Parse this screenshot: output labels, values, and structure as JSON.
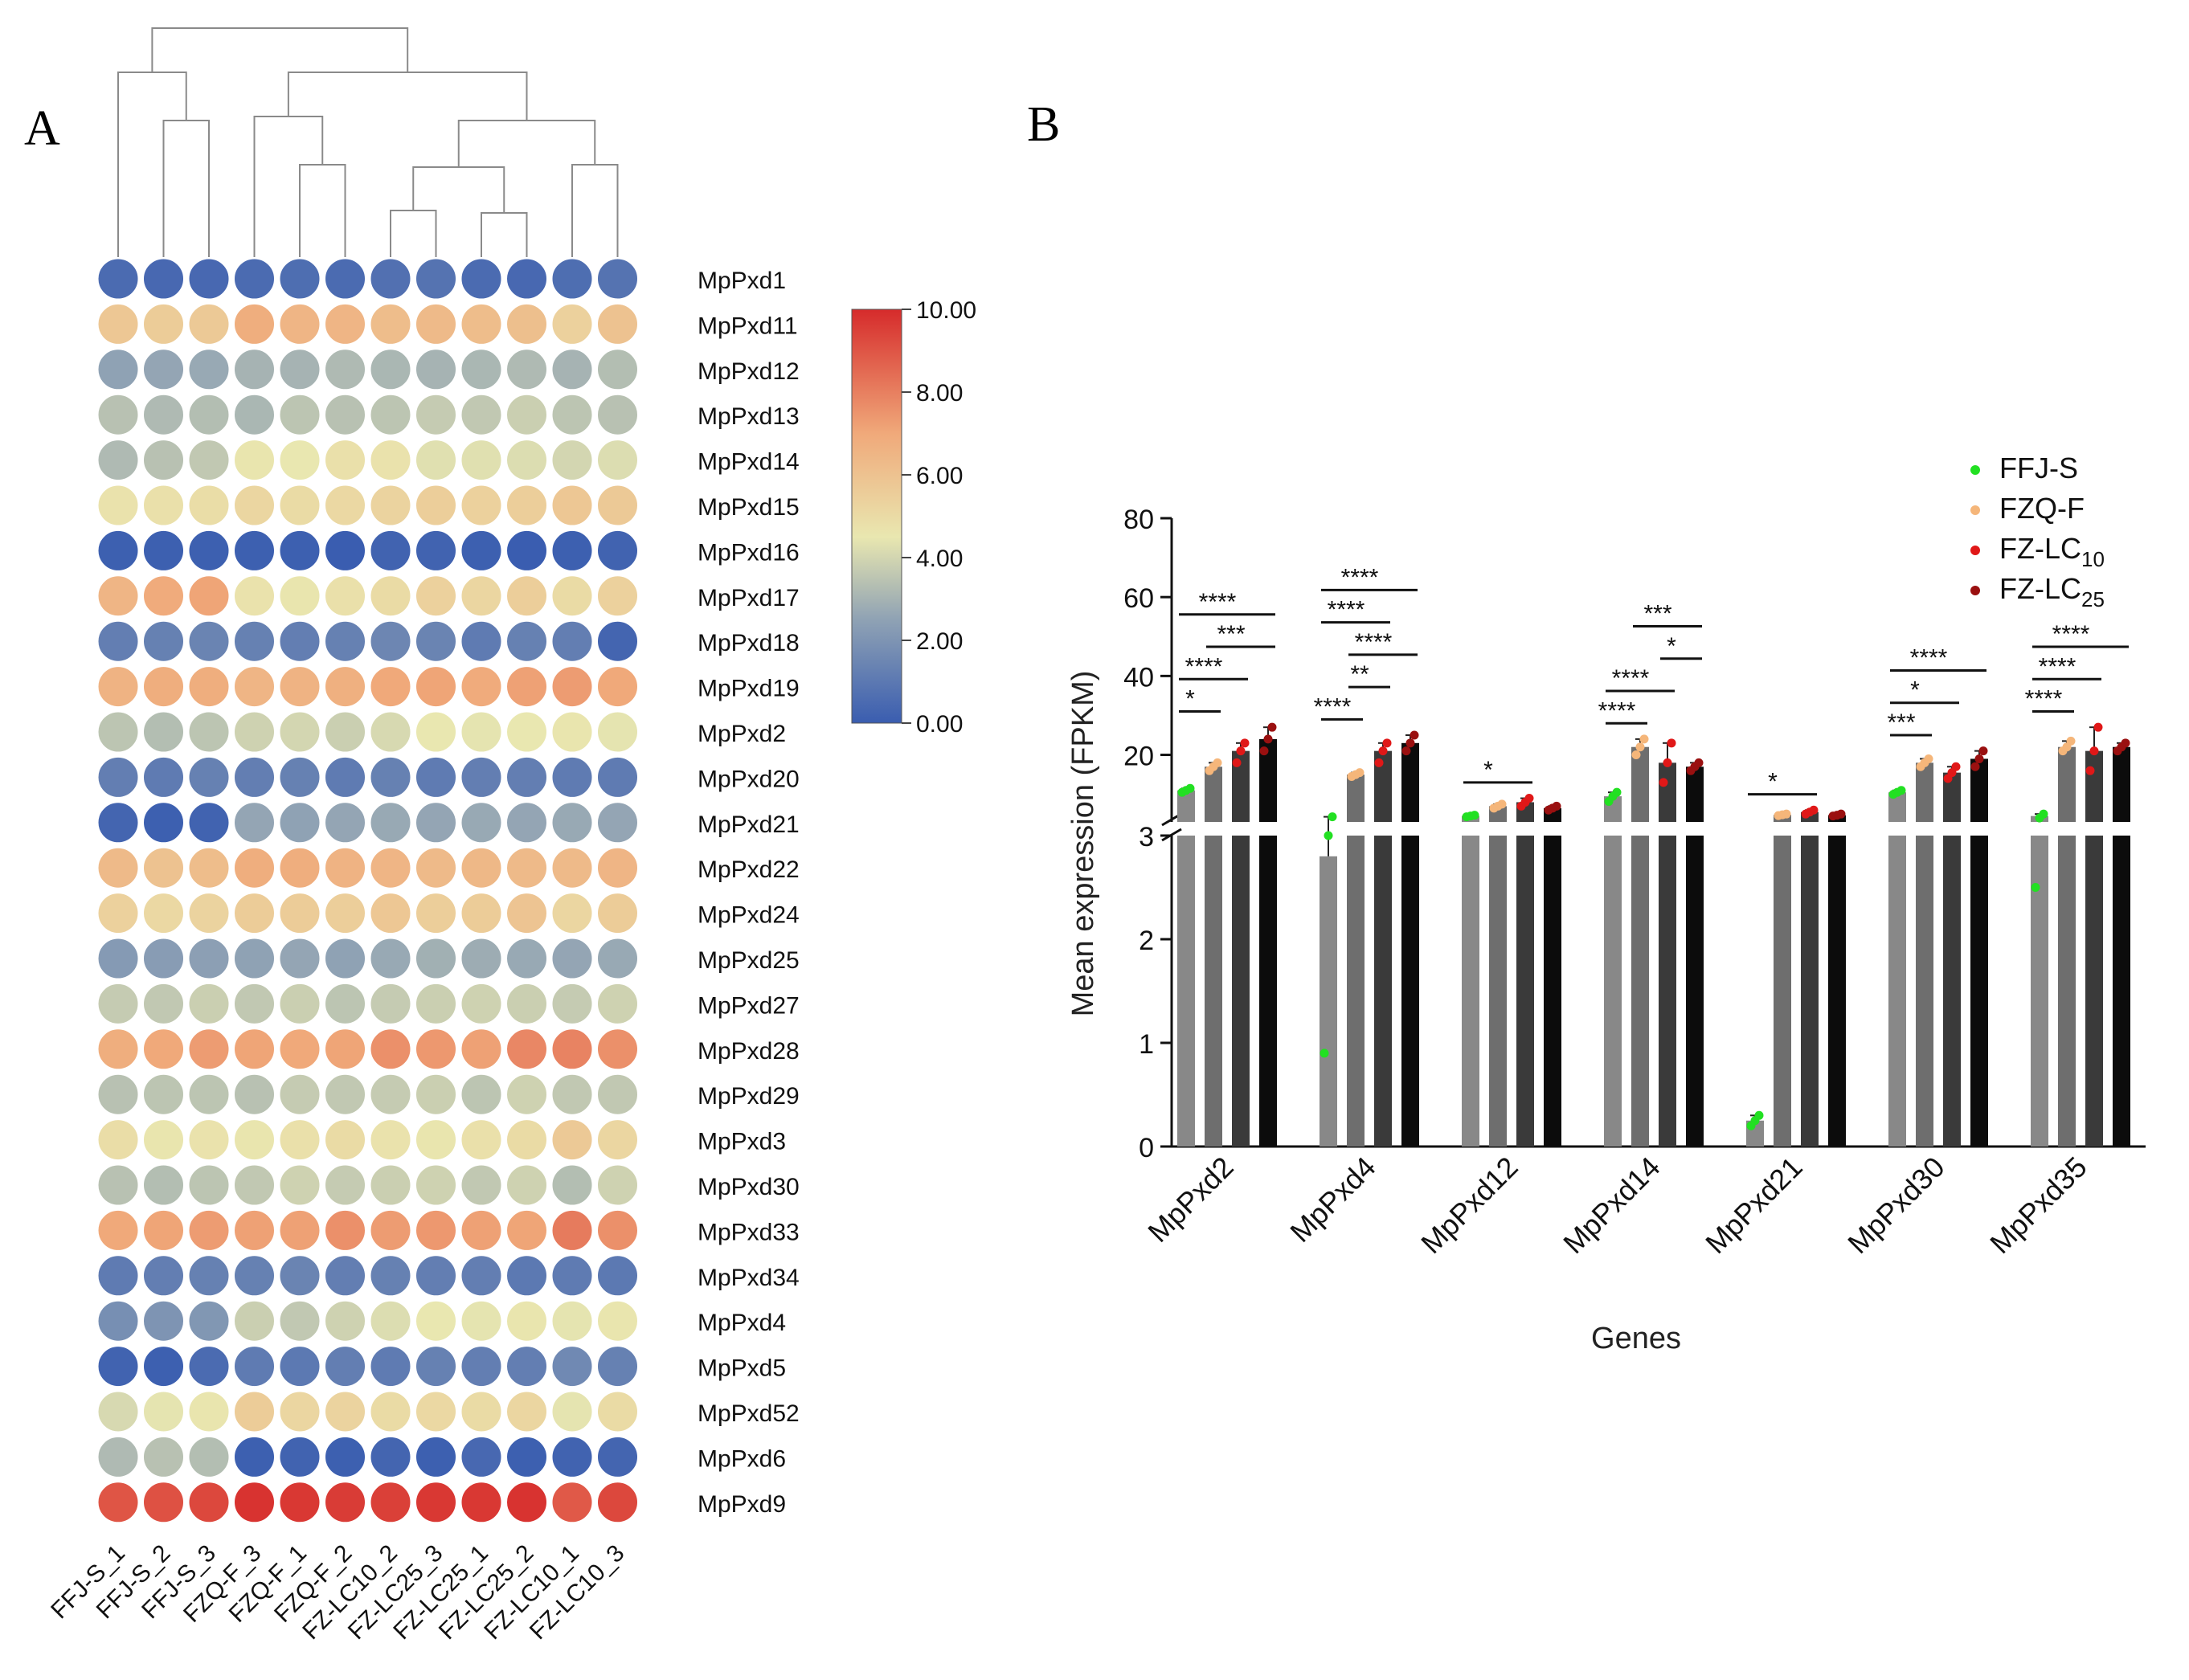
{
  "panels": {
    "a_label": "A",
    "b_label": "B"
  },
  "colors": {
    "ffj": "#22e022",
    "fzq": "#f5b67a",
    "lc10": "#e01818",
    "lc25": "#9a1010",
    "bar_ffj": "#888888",
    "bar_fzq": "#6e6e6e",
    "bar_lc10": "#3a3a3a",
    "bar_lc25": "#0c0c0c"
  },
  "chart_data": [
    {
      "type": "heatmap",
      "title": "",
      "columns": [
        "FFJ-S_1",
        "FFJ-S_2",
        "FFJ-S_3",
        "FZQ-F_3",
        "FZQ-F_1",
        "FZQ-F_2",
        "FZ-LC10_2",
        "FZ-LC25_3",
        "FZ-LC25_1",
        "FZ-LC25_2",
        "FZ-LC10_1",
        "FZ-LC10_3"
      ],
      "rows": [
        "MpPxd1",
        "MpPxd11",
        "MpPxd12",
        "MpPxd13",
        "MpPxd14",
        "MpPxd15",
        "MpPxd16",
        "MpPxd17",
        "MpPxd18",
        "MpPxd19",
        "MpPxd2",
        "MpPxd20",
        "MpPxd21",
        "MpPxd22",
        "MpPxd24",
        "MpPxd25",
        "MpPxd27",
        "MpPxd28",
        "MpPxd29",
        "MpPxd3",
        "MpPxd30",
        "MpPxd33",
        "MpPxd34",
        "MpPxd4",
        "MpPxd5",
        "MpPxd52",
        "MpPxd6",
        "MpPxd9"
      ],
      "values": [
        [
          0.5,
          0.4,
          0.4,
          0.5,
          0.6,
          0.5,
          0.7,
          0.8,
          0.5,
          0.4,
          0.6,
          0.8
        ],
        [
          5.8,
          5.6,
          5.7,
          6.8,
          6.5,
          6.5,
          6.2,
          6.3,
          6.2,
          6.1,
          5.4,
          6.0
        ],
        [
          2.5,
          2.6,
          2.7,
          3.0,
          3.0,
          3.2,
          3.1,
          3.0,
          3.1,
          3.2,
          3.0,
          3.3
        ],
        [
          3.4,
          3.2,
          3.3,
          3.1,
          3.5,
          3.4,
          3.5,
          3.7,
          3.6,
          3.8,
          3.5,
          3.4
        ],
        [
          3.2,
          3.4,
          3.6,
          4.6,
          4.5,
          4.8,
          4.7,
          4.3,
          4.3,
          4.2,
          4.0,
          4.2
        ],
        [
          4.7,
          4.8,
          4.9,
          5.2,
          5.0,
          5.1,
          5.3,
          5.5,
          5.4,
          5.5,
          5.8,
          5.7
        ],
        [
          0.1,
          0.1,
          0.1,
          0.1,
          0.1,
          0.0,
          0.2,
          0.2,
          0.1,
          0.0,
          0.1,
          0.2
        ],
        [
          6.5,
          6.9,
          7.1,
          4.7,
          4.6,
          4.8,
          5.0,
          5.4,
          5.2,
          5.5,
          5.0,
          5.4
        ],
        [
          1.2,
          1.3,
          1.4,
          1.3,
          1.2,
          1.3,
          1.5,
          1.4,
          1.1,
          1.3,
          1.2,
          0.3
        ],
        [
          6.6,
          6.8,
          6.8,
          6.5,
          6.6,
          6.7,
          7.0,
          7.1,
          6.9,
          7.2,
          7.3,
          7.0
        ],
        [
          3.5,
          3.3,
          3.5,
          3.9,
          4.0,
          3.8,
          4.1,
          4.5,
          4.4,
          4.5,
          4.6,
          4.4
        ],
        [
          1.2,
          1.1,
          1.3,
          1.2,
          1.3,
          1.1,
          1.3,
          1.1,
          1.2,
          1.2,
          1.1,
          1.1
        ],
        [
          0.3,
          0.1,
          0.2,
          2.6,
          2.5,
          2.6,
          2.7,
          2.6,
          2.7,
          2.6,
          2.7,
          2.6
        ],
        [
          6.3,
          6.0,
          6.2,
          6.8,
          6.8,
          6.6,
          6.5,
          6.3,
          6.4,
          6.3,
          6.3,
          6.5
        ],
        [
          5.4,
          5.1,
          5.3,
          5.6,
          5.6,
          5.5,
          5.8,
          5.5,
          5.6,
          5.9,
          5.2,
          5.6
        ],
        [
          2.2,
          2.3,
          2.4,
          2.5,
          2.6,
          2.5,
          2.7,
          2.9,
          2.8,
          2.7,
          2.6,
          2.7
        ],
        [
          3.7,
          3.6,
          3.8,
          3.6,
          3.8,
          3.5,
          3.7,
          3.8,
          3.9,
          3.8,
          3.7,
          3.9
        ],
        [
          6.8,
          7.0,
          7.3,
          7.1,
          7.0,
          7.1,
          7.6,
          7.4,
          7.2,
          7.8,
          7.9,
          7.6
        ],
        [
          3.4,
          3.5,
          3.5,
          3.4,
          3.7,
          3.6,
          3.7,
          3.8,
          3.5,
          3.9,
          3.6,
          3.6
        ],
        [
          4.9,
          4.6,
          4.7,
          4.6,
          4.8,
          5.0,
          4.7,
          4.6,
          4.8,
          5.0,
          5.7,
          5.2
        ],
        [
          3.4,
          3.3,
          3.5,
          3.6,
          3.9,
          3.7,
          3.8,
          3.9,
          3.6,
          3.9,
          3.3,
          3.9
        ],
        [
          7.0,
          7.1,
          7.3,
          7.2,
          7.2,
          7.6,
          7.3,
          7.4,
          7.2,
          7.1,
          8.1,
          7.6
        ],
        [
          1.1,
          1.2,
          1.3,
          1.3,
          1.4,
          1.2,
          1.3,
          1.2,
          1.2,
          1.0,
          1.1,
          1.0
        ],
        [
          1.8,
          2.0,
          2.1,
          3.8,
          3.6,
          3.9,
          4.2,
          4.5,
          4.4,
          4.6,
          4.4,
          4.6
        ],
        [
          0.2,
          0.1,
          0.5,
          1.1,
          1.0,
          1.2,
          1.1,
          1.3,
          1.2,
          1.2,
          1.6,
          1.3
        ],
        [
          4.1,
          4.4,
          4.6,
          5.6,
          5.2,
          5.3,
          5.0,
          5.1,
          5.0,
          5.2,
          4.4,
          5.0
        ],
        [
          3.2,
          3.4,
          3.3,
          0.1,
          0.2,
          0.1,
          0.3,
          0.1,
          0.4,
          0.1,
          0.2,
          0.3
        ],
        [
          9.0,
          9.1,
          9.3,
          9.8,
          9.7,
          9.6,
          9.5,
          9.7,
          9.7,
          9.8,
          8.9,
          9.3
        ]
      ],
      "colorbar": {
        "range": [
          0,
          10
        ],
        "ticks": [
          "10.00",
          "8.00",
          "6.00",
          "4.00",
          "2.00",
          "0.00"
        ],
        "stops": [
          "#3a5db0",
          "#e9e7b0",
          "#d62b2b"
        ]
      },
      "dendrogram": "hierarchical clustering of columns"
    },
    {
      "type": "bar",
      "title": "",
      "xlabel": "Genes",
      "ylabel": "Mean expression (FPKM)",
      "categories": [
        "MpPxd2",
        "MpPxd4",
        "MpPxd12",
        "MpPxd14",
        "MpPxd21",
        "MpPxd30",
        "MpPxd35"
      ],
      "ylim_lower": [
        0,
        3
      ],
      "ylim_upper": [
        3,
        80
      ],
      "yticks_lower": [
        "0",
        "1",
        "2",
        "3"
      ],
      "yticks_upper": [
        "20",
        "40",
        "60",
        "80"
      ],
      "series": [
        {
          "name": "FFJ-S",
          "legend_main": "FFJ-S",
          "legend_sub": "",
          "values": [
            11,
            2.8,
            4.5,
            9.5,
            0.25,
            10.5,
            4.5
          ],
          "points": [
            [
              10.5,
              11.0,
              11.5
            ],
            [
              0.9,
              3.0,
              4.3
            ],
            [
              4.3,
              4.5,
              4.7
            ],
            [
              8.2,
              9.5,
              10.5
            ],
            [
              0.2,
              0.25,
              0.3
            ],
            [
              10.0,
              10.5,
              11.0
            ],
            [
              2.5,
              4.0,
              5.0
            ]
          ]
        },
        {
          "name": "FZQ-F",
          "legend_main": "FZQ-F",
          "legend_sub": "",
          "values": [
            17,
            15,
            7,
            22,
            4.8,
            18,
            22
          ],
          "points": [
            [
              16.0,
              17.0,
              18.0
            ],
            [
              14.5,
              15.0,
              15.5
            ],
            [
              6.5,
              7.0,
              7.5
            ],
            [
              20.0,
              22.0,
              24.0
            ],
            [
              4.6,
              4.8,
              5.0
            ],
            [
              17.0,
              18.0,
              19.0
            ],
            [
              21.0,
              22.0,
              23.5
            ]
          ]
        },
        {
          "name": "FZ-LC10",
          "legend_main": "FZ-LC",
          "legend_sub": "10",
          "values": [
            21,
            21,
            8,
            18,
            5.5,
            15.5,
            21
          ],
          "points": [
            [
              18.0,
              21.0,
              23.0
            ],
            [
              18.0,
              21.0,
              23.0
            ],
            [
              7.0,
              8.0,
              9.0
            ],
            [
              13.0,
              18.0,
              23.0
            ],
            [
              5.0,
              5.5,
              6.0
            ],
            [
              14.0,
              15.5,
              17.0
            ],
            [
              16.0,
              21.0,
              27.0
            ]
          ]
        },
        {
          "name": "FZ-LC25",
          "legend_main": "FZ-LC",
          "legend_sub": "25",
          "values": [
            24,
            23,
            6.5,
            17,
            4.7,
            19,
            22
          ],
          "points": [
            [
              21.0,
              24.0,
              27.0
            ],
            [
              21.0,
              23.0,
              25.0
            ],
            [
              6.0,
              6.5,
              7.0
            ],
            [
              16.0,
              17.0,
              18.0
            ],
            [
              4.5,
              4.7,
              5.0
            ],
            [
              17.0,
              19.0,
              21.0
            ],
            [
              21.0,
              22.0,
              23.0
            ]
          ]
        }
      ],
      "significance": [
        [
          {
            "from": 0,
            "to": 1,
            "label": "*"
          },
          {
            "from": 0,
            "to": 2,
            "label": "****"
          },
          {
            "from": 1,
            "to": 3,
            "label": "***"
          },
          {
            "from": 0,
            "to": 3,
            "label": "****"
          }
        ],
        [
          {
            "from": 0,
            "to": 1,
            "label": "****"
          },
          {
            "from": 1,
            "to": 2,
            "label": "**"
          },
          {
            "from": 1,
            "to": 3,
            "label": "****"
          },
          {
            "from": 0,
            "to": 2,
            "label": "****"
          },
          {
            "from": 0,
            "to": 3,
            "label": "****"
          }
        ],
        [
          {
            "from": 0,
            "to": 2,
            "label": "*"
          }
        ],
        [
          {
            "from": 0,
            "to": 1,
            "label": "****"
          },
          {
            "from": 0,
            "to": 2,
            "label": "****"
          },
          {
            "from": 2,
            "to": 3,
            "label": "*"
          },
          {
            "from": 1,
            "to": 3,
            "label": "***"
          }
        ],
        [
          {
            "from": 0,
            "to": 2,
            "label": "*"
          }
        ],
        [
          {
            "from": 0,
            "to": 1,
            "label": "***"
          },
          {
            "from": 0,
            "to": 2,
            "label": "*"
          },
          {
            "from": 0,
            "to": 3,
            "label": "****"
          }
        ],
        [
          {
            "from": 0,
            "to": 1,
            "label": "****"
          },
          {
            "from": 0,
            "to": 2,
            "label": "****"
          },
          {
            "from": 0,
            "to": 3,
            "label": "****"
          }
        ]
      ],
      "legend_position": "top-right"
    }
  ]
}
